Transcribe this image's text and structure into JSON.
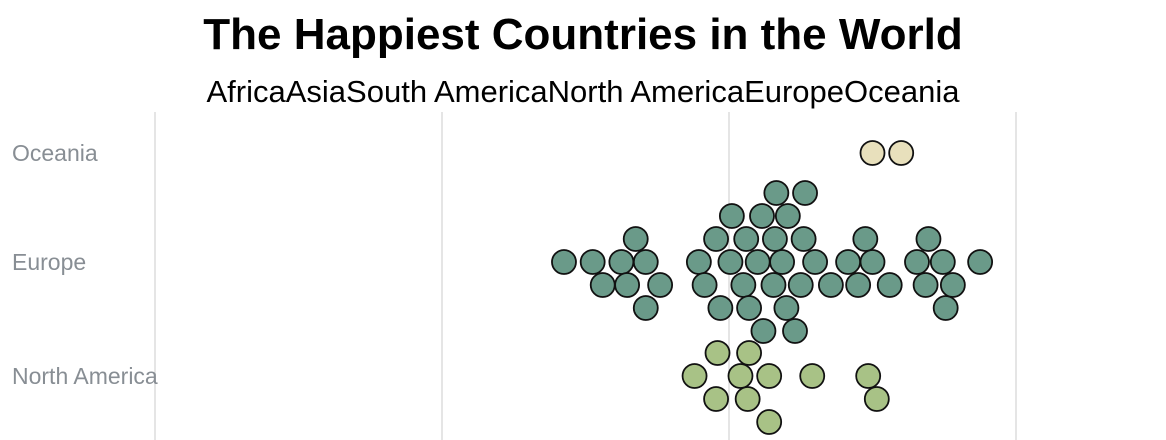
{
  "chart_data": {
    "type": "scatter",
    "title": "The Happiest Countries in the World",
    "legend": {
      "placement": "top",
      "entries": [
        "Africa",
        "Asia",
        "South America",
        "North America",
        "Europe",
        "Oceania"
      ]
    },
    "categories": [
      "Oceania",
      "Europe",
      "North America"
    ],
    "xlabel": "",
    "ylabel": "",
    "grid": true,
    "xgrid": [
      2,
      4,
      6,
      8
    ],
    "xlim": [
      1,
      9
    ],
    "colors": {
      "Oceania": "#e8e0bc",
      "Europe": "#6a9a89",
      "North America": "#a8c286",
      "Asia": "#d59f6a",
      "Africa": "#c96d5e",
      "South America": "#7fa6c4"
    },
    "series": [
      {
        "name": "Oceania",
        "values": [
          7.0,
          7.2
        ]
      },
      {
        "name": "Europe",
        "values": [
          4.85,
          5.05,
          5.12,
          5.25,
          5.29,
          5.35,
          5.42,
          5.42,
          5.52,
          5.79,
          5.83,
          5.91,
          5.94,
          6.01,
          6.02,
          6.1,
          6.12,
          6.14,
          6.2,
          6.23,
          6.24,
          6.31,
          6.32,
          6.33,
          6.37,
          6.41,
          6.4,
          6.46,
          6.5,
          6.52,
          6.53,
          6.6,
          6.71,
          6.83,
          6.9,
          6.95,
          7.0,
          7.12,
          7.31,
          7.39,
          7.37,
          7.49,
          7.51,
          7.56,
          7.75
        ]
      },
      {
        "name": "North America",
        "values": [
          5.76,
          5.91,
          5.92,
          6.08,
          6.13,
          6.14,
          6.28,
          6.28,
          6.58,
          6.97,
          7.03
        ]
      }
    ]
  }
}
